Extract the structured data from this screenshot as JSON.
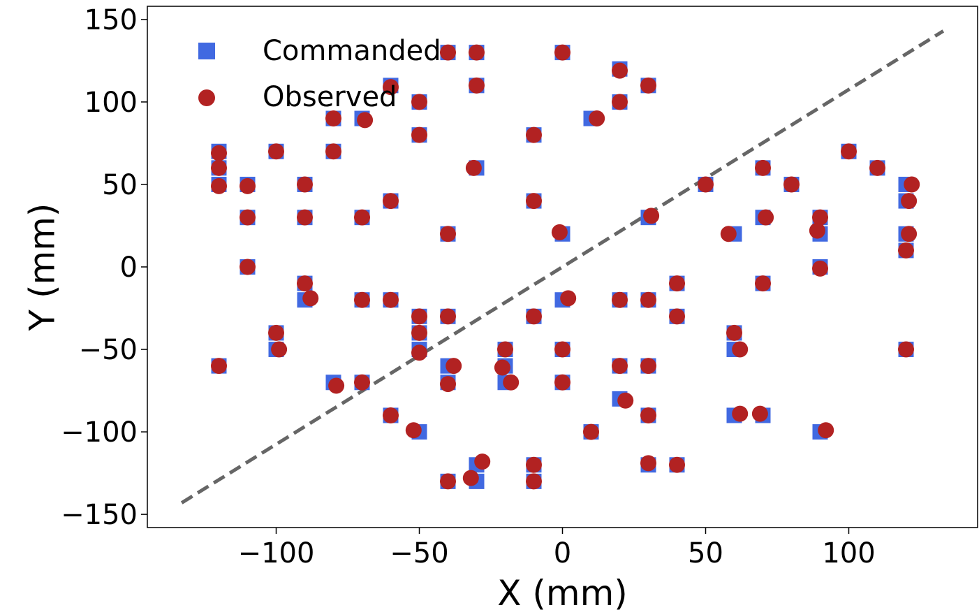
{
  "chart_data": {
    "type": "scatter",
    "title": "",
    "xlabel": "X (mm)",
    "ylabel": "Y (mm)",
    "xlim": [
      -145,
      145
    ],
    "ylim": [
      -158,
      158
    ],
    "xticks": [
      -100,
      -50,
      0,
      50,
      100
    ],
    "yticks": [
      -150,
      -100,
      -50,
      0,
      50,
      100,
      150
    ],
    "xtick_labels": [
      "−100",
      "−50",
      "0",
      "50",
      "100"
    ],
    "ytick_labels": [
      "−150",
      "−100",
      "−50",
      "0",
      "50",
      "100",
      "150"
    ],
    "grid": false,
    "legend_position": "top-left",
    "reference_line": {
      "style": "dashed",
      "color": "#666666",
      "x": [
        -133,
        133
      ],
      "y": [
        -143,
        143
      ]
    },
    "series": [
      {
        "name": "Commanded",
        "marker": "square",
        "color": "#4169e1",
        "points": [
          [
            -120,
            70
          ],
          [
            -120,
            60
          ],
          [
            -120,
            50
          ],
          [
            -110,
            50
          ],
          [
            -110,
            30
          ],
          [
            -110,
            0
          ],
          [
            -120,
            -60
          ],
          [
            -100,
            70
          ],
          [
            -100,
            -40
          ],
          [
            -100,
            -50
          ],
          [
            -90,
            50
          ],
          [
            -90,
            30
          ],
          [
            -90,
            -10
          ],
          [
            -90,
            -20
          ],
          [
            -80,
            90
          ],
          [
            -80,
            70
          ],
          [
            -80,
            -70
          ],
          [
            -70,
            90
          ],
          [
            -70,
            30
          ],
          [
            -70,
            -20
          ],
          [
            -70,
            -70
          ],
          [
            -60,
            110
          ],
          [
            -60,
            40
          ],
          [
            -60,
            -20
          ],
          [
            -60,
            -90
          ],
          [
            -50,
            100
          ],
          [
            -50,
            80
          ],
          [
            -50,
            -30
          ],
          [
            -50,
            -40
          ],
          [
            -50,
            -50
          ],
          [
            -50,
            -100
          ],
          [
            -40,
            130
          ],
          [
            -40,
            20
          ],
          [
            -40,
            -30
          ],
          [
            -40,
            -60
          ],
          [
            -40,
            -70
          ],
          [
            -40,
            -130
          ],
          [
            -30,
            130
          ],
          [
            -30,
            110
          ],
          [
            -30,
            60
          ],
          [
            -30,
            -120
          ],
          [
            -30,
            -130
          ],
          [
            -20,
            -50
          ],
          [
            -20,
            -60
          ],
          [
            -20,
            -70
          ],
          [
            -10,
            80
          ],
          [
            -10,
            40
          ],
          [
            -10,
            -30
          ],
          [
            -10,
            -120
          ],
          [
            -10,
            -130
          ],
          [
            0,
            130
          ],
          [
            0,
            20
          ],
          [
            0,
            -20
          ],
          [
            0,
            -50
          ],
          [
            0,
            -70
          ],
          [
            10,
            90
          ],
          [
            10,
            -100
          ],
          [
            20,
            120
          ],
          [
            20,
            100
          ],
          [
            20,
            -20
          ],
          [
            20,
            -60
          ],
          [
            20,
            -80
          ],
          [
            30,
            110
          ],
          [
            30,
            30
          ],
          [
            30,
            -20
          ],
          [
            30,
            -60
          ],
          [
            30,
            -90
          ],
          [
            30,
            -120
          ],
          [
            40,
            -10
          ],
          [
            40,
            -30
          ],
          [
            40,
            -120
          ],
          [
            50,
            50
          ],
          [
            60,
            20
          ],
          [
            60,
            -40
          ],
          [
            60,
            -50
          ],
          [
            60,
            -90
          ],
          [
            70,
            60
          ],
          [
            70,
            30
          ],
          [
            70,
            -10
          ],
          [
            70,
            -90
          ],
          [
            80,
            50
          ],
          [
            90,
            30
          ],
          [
            90,
            20
          ],
          [
            90,
            0
          ],
          [
            90,
            -100
          ],
          [
            100,
            70
          ],
          [
            110,
            60
          ],
          [
            120,
            50
          ],
          [
            120,
            40
          ],
          [
            120,
            20
          ],
          [
            120,
            10
          ],
          [
            120,
            -50
          ]
        ]
      },
      {
        "name": "Observed",
        "marker": "circle",
        "color": "#b22222",
        "points": [
          [
            -120,
            69
          ],
          [
            -120,
            60
          ],
          [
            -120,
            49
          ],
          [
            -110,
            49
          ],
          [
            -110,
            30
          ],
          [
            -110,
            0
          ],
          [
            -120,
            -60
          ],
          [
            -100,
            70
          ],
          [
            -100,
            -40
          ],
          [
            -99,
            -50
          ],
          [
            -90,
            50
          ],
          [
            -90,
            30
          ],
          [
            -90,
            -10
          ],
          [
            -88,
            -19
          ],
          [
            -80,
            90
          ],
          [
            -80,
            70
          ],
          [
            -79,
            -72
          ],
          [
            -69,
            89
          ],
          [
            -70,
            30
          ],
          [
            -70,
            -20
          ],
          [
            -70,
            -70
          ],
          [
            -60,
            109
          ],
          [
            -60,
            40
          ],
          [
            -60,
            -20
          ],
          [
            -60,
            -90
          ],
          [
            -50,
            100
          ],
          [
            -50,
            80
          ],
          [
            -50,
            -30
          ],
          [
            -50,
            -40
          ],
          [
            -50,
            -52
          ],
          [
            -52,
            -99
          ],
          [
            -40,
            130
          ],
          [
            -40,
            20
          ],
          [
            -40,
            -30
          ],
          [
            -38,
            -60
          ],
          [
            -40,
            -71
          ],
          [
            -40,
            -130
          ],
          [
            -30,
            130
          ],
          [
            -30,
            110
          ],
          [
            -31,
            60
          ],
          [
            -28,
            -118
          ],
          [
            -32,
            -128
          ],
          [
            -20,
            -50
          ],
          [
            -21,
            -61
          ],
          [
            -18,
            -70
          ],
          [
            -10,
            80
          ],
          [
            -10,
            40
          ],
          [
            -10,
            -30
          ],
          [
            -10,
            -120
          ],
          [
            -10,
            -130
          ],
          [
            0,
            130
          ],
          [
            -1,
            21
          ],
          [
            2,
            -19
          ],
          [
            0,
            -50
          ],
          [
            0,
            -70
          ],
          [
            12,
            90
          ],
          [
            10,
            -100
          ],
          [
            20,
            119
          ],
          [
            20,
            100
          ],
          [
            20,
            -20
          ],
          [
            20,
            -60
          ],
          [
            22,
            -81
          ],
          [
            30,
            110
          ],
          [
            31,
            31
          ],
          [
            30,
            -20
          ],
          [
            30,
            -60
          ],
          [
            30,
            -90
          ],
          [
            30,
            -119
          ],
          [
            40,
            -10
          ],
          [
            40,
            -30
          ],
          [
            40,
            -120
          ],
          [
            50,
            50
          ],
          [
            58,
            20
          ],
          [
            60,
            -40
          ],
          [
            62,
            -50
          ],
          [
            62,
            -89
          ],
          [
            70,
            60
          ],
          [
            71,
            30
          ],
          [
            70,
            -10
          ],
          [
            69,
            -89
          ],
          [
            80,
            50
          ],
          [
            90,
            30
          ],
          [
            89,
            22
          ],
          [
            90,
            -1
          ],
          [
            92,
            -99
          ],
          [
            100,
            70
          ],
          [
            110,
            60
          ],
          [
            122,
            50
          ],
          [
            121,
            40
          ],
          [
            121,
            20
          ],
          [
            120,
            10
          ],
          [
            120,
            -50
          ]
        ]
      }
    ]
  }
}
